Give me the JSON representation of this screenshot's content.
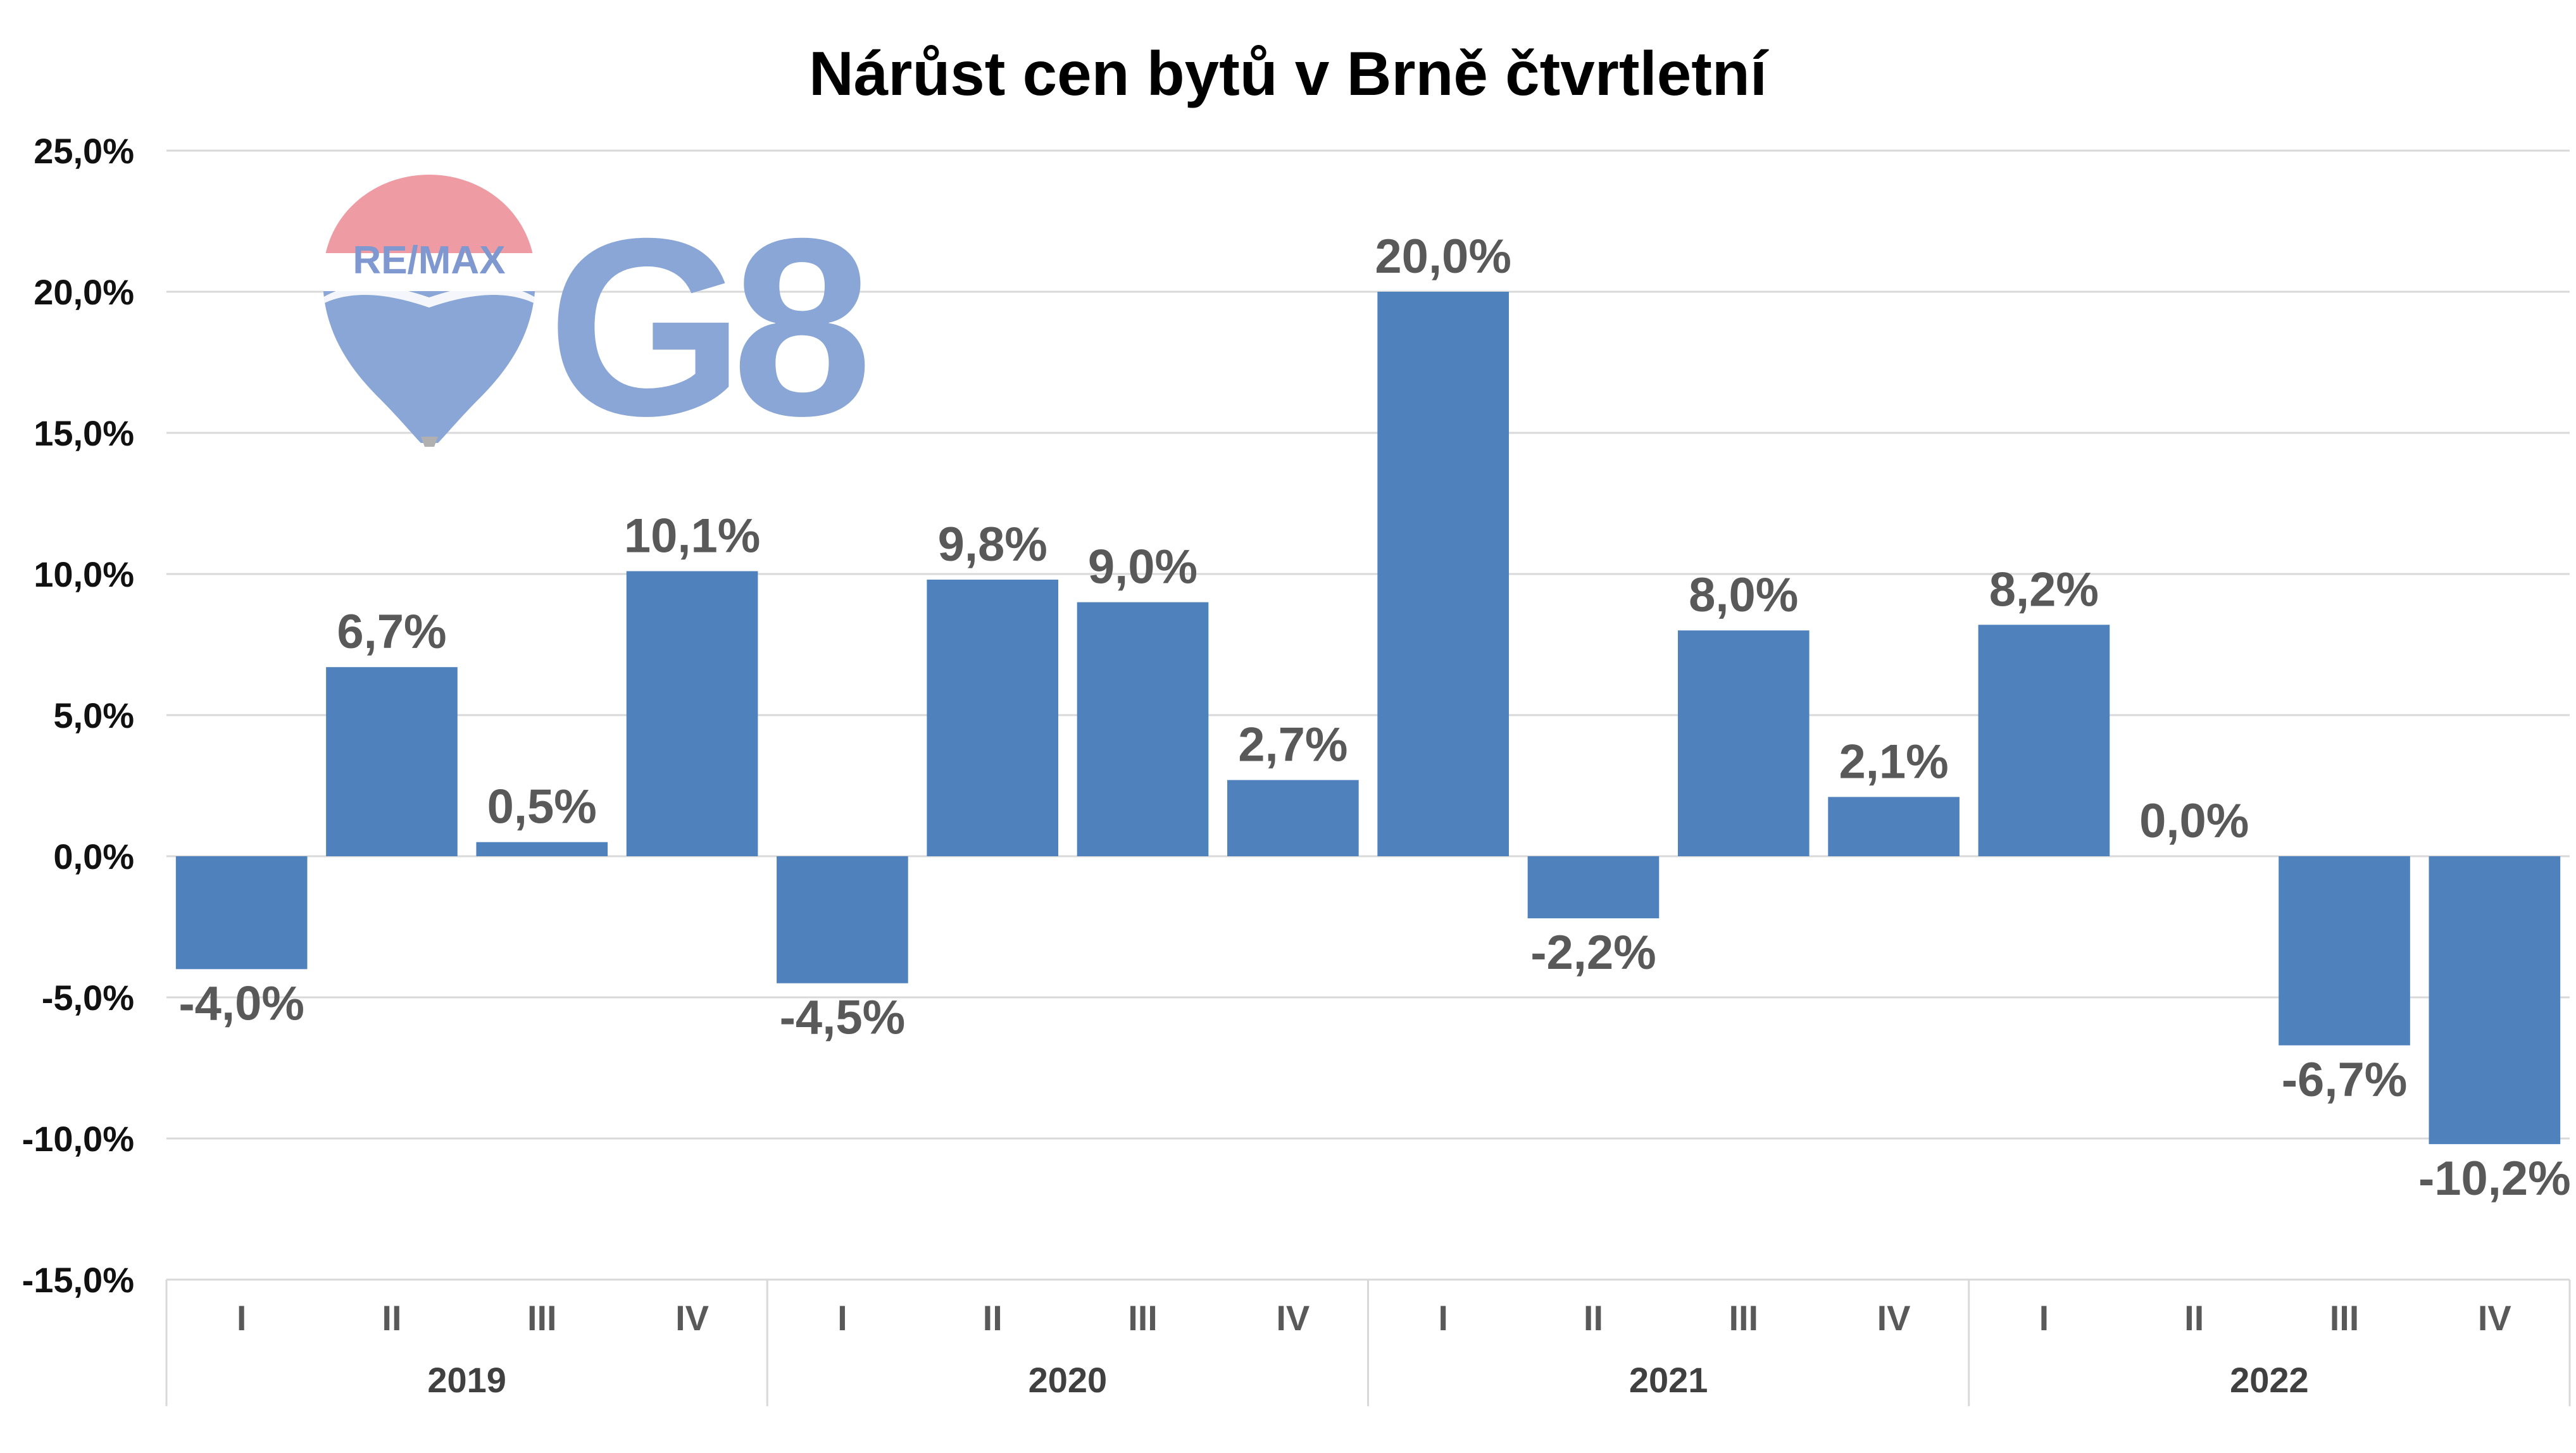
{
  "chart_data": {
    "type": "bar",
    "title": "Nárůst cen bytů v Brně čtvrtletní",
    "years": [
      "2019",
      "2020",
      "2021",
      "2022"
    ],
    "quarters": [
      "I",
      "II",
      "III",
      "IV"
    ],
    "categories": [
      "2019 I",
      "2019 II",
      "2019 III",
      "2019 IV",
      "2020 I",
      "2020 II",
      "2020 III",
      "2020 IV",
      "2021 I",
      "2021 II",
      "2021 III",
      "2021 IV",
      "2022 I",
      "2022 II",
      "2022 III",
      "2022 IV"
    ],
    "values": [
      -4.0,
      6.7,
      0.5,
      10.1,
      -4.5,
      9.8,
      9.0,
      2.7,
      20.0,
      -2.2,
      8.0,
      2.1,
      8.2,
      0.0,
      -6.7,
      -10.2
    ],
    "value_labels": [
      "-4,0%",
      "6,7%",
      "0,5%",
      "10,1%",
      "-4,5%",
      "9,8%",
      "9,0%",
      "2,7%",
      "20,0%",
      "-2,2%",
      "8,0%",
      "2,1%",
      "8,2%",
      "0,0%",
      "-6,7%",
      "-10,2%"
    ],
    "yticks": [
      25,
      20,
      15,
      10,
      5,
      0,
      -5,
      -10,
      -15
    ],
    "ytick_labels": [
      "25,0%",
      "20,0%",
      "15,0%",
      "10,0%",
      "5,0%",
      "0,0%",
      "-5,0%",
      "-10,0%",
      "-15,0%"
    ],
    "ylim": [
      -15,
      25
    ],
    "grid": true,
    "legend": "none",
    "bar_color": "#4f81bd"
  },
  "logo": {
    "balloon_text": "RE/MAX",
    "brand_text": "G8",
    "colors": {
      "balloon_top": "#ee9ba3",
      "balloon_band": "#ffffff",
      "balloon_bottom": "#8aa6d6",
      "balloon_text": "#7f98cf",
      "brand": "#8aa6d6"
    }
  }
}
